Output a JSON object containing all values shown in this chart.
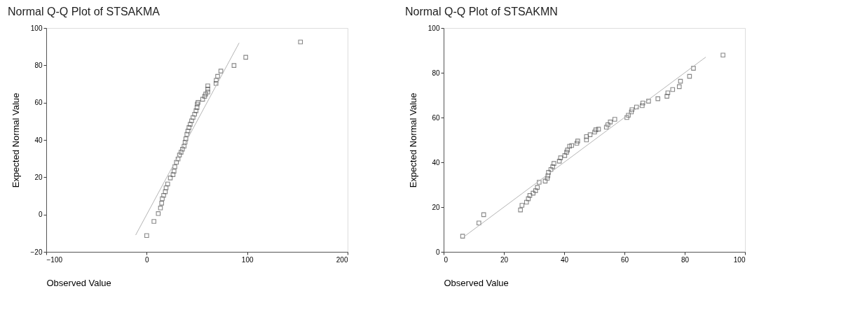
{
  "chart_data": [
    {
      "type": "scatter",
      "title": "Normal Q-Q Plot of STSAKMA",
      "xlabel": "Observed Value",
      "ylabel": "Expected Normal Value",
      "xlim": [
        -100,
        200
      ],
      "ylim": [
        -20,
        100
      ],
      "xticks": [
        -100,
        0,
        100,
        200
      ],
      "yticks": [
        -20,
        0,
        20,
        40,
        60,
        80,
        100
      ],
      "grid": false,
      "series": [
        {
          "marker": "square",
          "color": "#555555",
          "x": [
            0,
            7.2,
            11.5,
            13.7,
            14.9,
            15.5,
            16.9,
            18.5,
            19.3,
            20.9,
            23.5,
            26.2,
            27.2,
            28.0,
            29.6,
            31.2,
            32.6,
            34.2,
            35.6,
            37.2,
            38.2,
            39.0,
            40.0,
            41.0,
            42.1,
            43.3,
            44.7,
            46.1,
            47.7,
            49.1,
            50.1,
            50.3,
            51.1,
            55.7,
            57.7,
            58.8,
            60.8,
            60.8,
            60.8,
            69.0,
            69.2,
            70.6,
            73.8,
            86.9,
            98.6,
            153.1
          ],
          "values": [
            -11.3,
            -3.7,
            0.5,
            3.5,
            6.1,
            8.5,
            10.3,
            12.2,
            14.3,
            16.4,
            19.6,
            21.4,
            23.2,
            25.6,
            28.0,
            29.8,
            31.9,
            33.4,
            35.0,
            36.6,
            38.8,
            40.6,
            43.0,
            44.8,
            46.6,
            48.4,
            50.2,
            52.0,
            53.8,
            55.6,
            57.4,
            59.2,
            60.1,
            61.8,
            63.4,
            64.6,
            65.7,
            67.3,
            69.0,
            70.3,
            72.0,
            74.1,
            76.9,
            79.9,
            84.3,
            92.5
          ]
        },
        {
          "type": "line",
          "color": "#b5b5b5",
          "x": [
            -11,
            92
          ],
          "values": [
            -11,
            92
          ]
        }
      ]
    },
    {
      "type": "scatter",
      "title": "Normal Q-Q Plot of STSAKMN",
      "xlabel": "Observed Value",
      "ylabel": "Expected Normal Value",
      "xlim": [
        0,
        100
      ],
      "ylim": [
        0,
        100
      ],
      "xticks": [
        0,
        20,
        40,
        60,
        80,
        100
      ],
      "yticks": [
        0,
        20,
        40,
        60,
        80,
        100
      ],
      "grid": false,
      "series": [
        {
          "marker": "square",
          "color": "#555555",
          "x": [
            6.3,
            11.7,
            13.3,
            25.5,
            26.0,
            27.5,
            28.1,
            28.6,
            29.7,
            30.5,
            31.1,
            31.7,
            33.7,
            34.4,
            34.6,
            34.8,
            35.6,
            36.2,
            36.6,
            38.4,
            38.8,
            40.2,
            40.8,
            41.1,
            41.8,
            42.5,
            44.2,
            44.5,
            47.4,
            47.4,
            48.6,
            50.1,
            50.5,
            51.4,
            54.0,
            54.5,
            55.3,
            56.8,
            60.8,
            61.3,
            62.3,
            62.5,
            64.0,
            65.9,
            66.1,
            68.0,
            71.1,
            74.1,
            74.4,
            76.0,
            78.2,
            78.6,
            81.6,
            82.9,
            92.7
          ],
          "values": [
            7.0,
            12.9,
            16.6,
            18.7,
            20.8,
            22.2,
            23.7,
            25.2,
            26.2,
            27.3,
            28.8,
            31.1,
            31.6,
            32.8,
            34.0,
            35.5,
            36.8,
            38.0,
            39.5,
            40.5,
            42.0,
            43.0,
            44.5,
            45.5,
            47.2,
            47.5,
            48.5,
            49.5,
            50.0,
            51.5,
            52.3,
            53.5,
            54.5,
            54.8,
            55.7,
            56.8,
            58.0,
            59.2,
            60.0,
            61.0,
            62.5,
            63.5,
            64.7,
            65.3,
            66.5,
            67.3,
            68.4,
            69.5,
            71.0,
            72.5,
            73.8,
            76.2,
            78.4,
            82.0,
            87.9
          ]
        },
        {
          "type": "line",
          "color": "#b5b5b5",
          "x": [
            7,
            87
          ],
          "values": [
            7,
            87
          ]
        }
      ]
    }
  ]
}
